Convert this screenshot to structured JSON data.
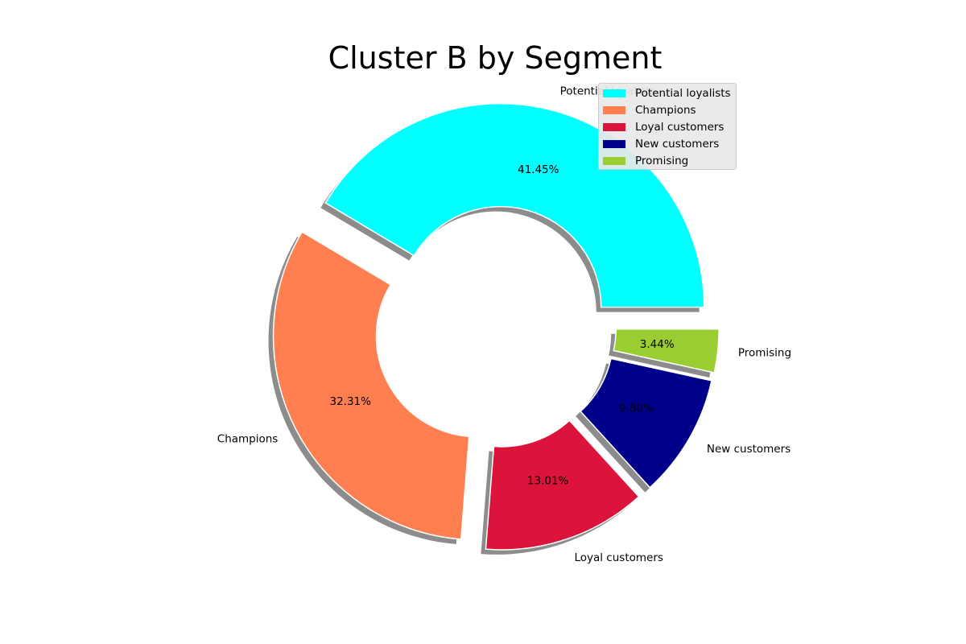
{
  "chart_data": {
    "type": "pie",
    "title": "Cluster B by Segment",
    "donut": true,
    "shadow": true,
    "legend_position": "top-right",
    "labels": [
      "Potential loyalists",
      "Champions",
      "Loyal customers",
      "New customers",
      "Promising"
    ],
    "values": [
      41.45,
      32.31,
      13.01,
      9.8,
      3.44
    ],
    "pct_labels": [
      "41.45%",
      "32.31%",
      "13.01%",
      "9.80%",
      "3.44%"
    ],
    "colors": [
      "#00ffff",
      "#ff7f50",
      "#dc143c",
      "#00008b",
      "#9acd32"
    ]
  }
}
